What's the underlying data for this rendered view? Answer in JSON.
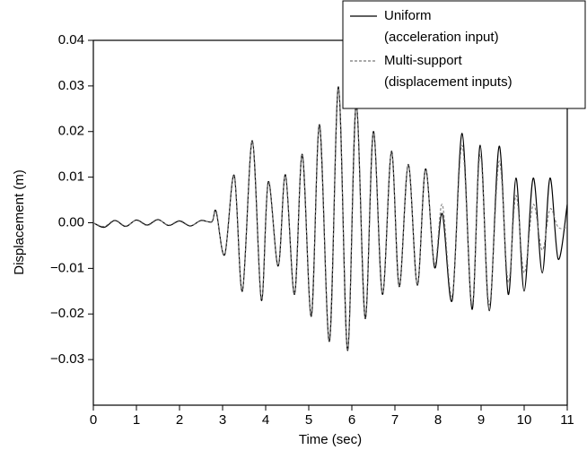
{
  "chart_data": {
    "type": "line",
    "x_label": "Time (sec)",
    "y_label": "Displacement (m)",
    "xlim": [
      0,
      11
    ],
    "xticks": [
      0,
      1,
      2,
      3,
      4,
      5,
      6,
      7,
      8,
      9,
      10,
      11
    ],
    "ylim": [
      -0.04,
      0.04
    ],
    "yticks": [
      {
        "value": -0.03,
        "label": "−0.03"
      },
      {
        "value": -0.02,
        "label": "−0.02"
      },
      {
        "value": -0.01,
        "label": "−0.01"
      },
      {
        "value": 0,
        "label": "0.00"
      },
      0.01,
      0.02,
      0.03,
      0.04
    ],
    "legend": "upper right",
    "x": [
      0,
      0.25,
      0.5,
      0.75,
      1,
      1.25,
      1.5,
      1.75,
      2,
      2.25,
      2.5,
      2.75,
      2.85,
      3.05,
      3.27,
      3.46,
      3.69,
      3.9,
      4.06,
      4.29,
      4.46,
      4.67,
      4.85,
      5.06,
      5.25,
      5.48,
      5.69,
      5.9,
      6.1,
      6.31,
      6.5,
      6.71,
      6.92,
      7.1,
      7.31,
      7.52,
      7.71,
      7.92,
      8.1,
      8.33,
      8.56,
      8.79,
      8.98,
      9.19,
      9.42,
      9.63,
      9.81,
      10,
      10.21,
      10.42,
      10.6,
      10.79,
      11
    ],
    "series": [
      {
        "name": [
          "Uniform",
          "(acceleration input)"
        ],
        "color": "#000000",
        "dash": false,
        "values": [
          0,
          -0.001,
          0.0005,
          -0.0008,
          0.0006,
          -0.0005,
          0.0007,
          -0.0006,
          0.0004,
          -0.0007,
          0.0005,
          0.0002,
          0.0025,
          -0.007,
          0.0104,
          -0.015,
          0.018,
          -0.017,
          0.009,
          -0.0095,
          0.0105,
          -0.0157,
          0.015,
          -0.0205,
          0.0215,
          -0.026,
          0.0298,
          -0.028,
          0.026,
          -0.021,
          0.02,
          -0.0157,
          0.0157,
          -0.014,
          0.0128,
          -0.0137,
          0.0118,
          -0.0098,
          0.002,
          -0.017,
          0.0196,
          -0.019,
          0.017,
          -0.0193,
          0.0168,
          -0.0157,
          0.0098,
          -0.015,
          0.0098,
          -0.011,
          0.0098,
          -0.008,
          0.004
        ]
      },
      {
        "name": [
          "Multi-support",
          "(displacement inputs)"
        ],
        "color": "#777777",
        "dash": true,
        "values": [
          0,
          -0.0008,
          0.0006,
          -0.0007,
          0.0005,
          -0.0006,
          0.0006,
          -0.0005,
          0.0005,
          -0.0006,
          0.0004,
          0.0003,
          0.0022,
          -0.0068,
          0.0102,
          -0.0148,
          0.0178,
          -0.0168,
          0.0088,
          -0.0093,
          0.0103,
          -0.0155,
          0.0148,
          -0.0203,
          0.0213,
          -0.0258,
          0.0295,
          -0.0278,
          0.0258,
          -0.0208,
          0.0198,
          -0.0155,
          0.0155,
          -0.0138,
          0.0126,
          -0.0135,
          0.0116,
          -0.009,
          0.004,
          -0.016,
          0.017,
          -0.018,
          0.015,
          -0.018,
          0.0135,
          -0.013,
          0.006,
          -0.011,
          0.004,
          -0.006,
          0.003,
          -0.001,
          -0.001
        ]
      }
    ]
  }
}
